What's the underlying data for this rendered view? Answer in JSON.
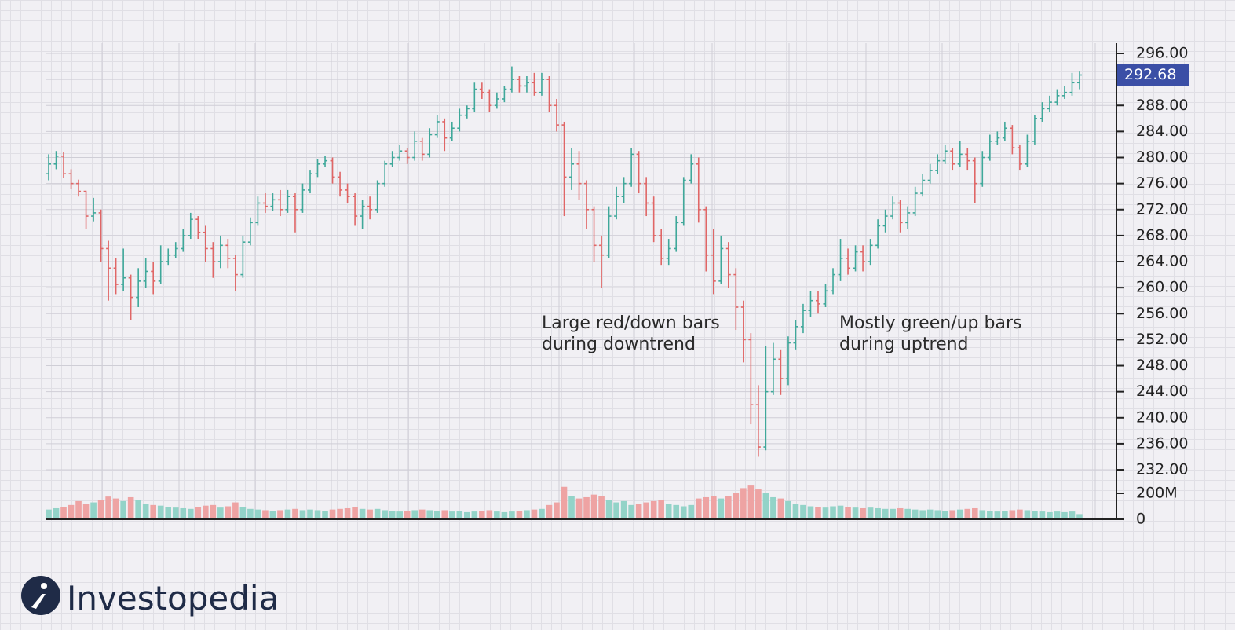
{
  "chart_data": {
    "type": "ohlc",
    "open": [
      277.5,
      279.0,
      280.2,
      277.5,
      276.0,
      274.8,
      271.0,
      271.5,
      266.0,
      263.0,
      260.5,
      261.5,
      258.5,
      261.0,
      262.5,
      261.0,
      264.0,
      265.0,
      266.0,
      268.0,
      270.5,
      268.5,
      266.0,
      264.0,
      266.5,
      264.5,
      262.0,
      267.0,
      270.0,
      273.0,
      272.5,
      273.5,
      272.0,
      274.0,
      272.0,
      275.0,
      277.5,
      279.0,
      279.5,
      277.0,
      275.0,
      274.0,
      271.0,
      272.5,
      272.0,
      276.0,
      279.0,
      280.0,
      281.0,
      280.0,
      282.5,
      280.5,
      283.5,
      285.5,
      283.0,
      284.5,
      286.5,
      287.5,
      290.5,
      290.0,
      288.0,
      289.0,
      290.5,
      292.0,
      291.0,
      291.5,
      290.0,
      292.0,
      288.0,
      285.0,
      277.0,
      279.0,
      276.0,
      272.0,
      266.5,
      265.0,
      271.0,
      274.0,
      276.0,
      280.5,
      276.0,
      273.0,
      268.0,
      264.5,
      266.0,
      270.0,
      276.5,
      279.0,
      272.0,
      265.0,
      261.0,
      266.0,
      262.0,
      257.0,
      252.0,
      242.0,
      235.5,
      244.0,
      249.0,
      246.0,
      251.5,
      254.0,
      256.5,
      258.0,
      257.5,
      259.5,
      262.0,
      264.5,
      263.0,
      265.5,
      264.0,
      266.5,
      269.5,
      271.0,
      273.0,
      270.0,
      271.5,
      274.5,
      276.5,
      278.0,
      279.5,
      281.0,
      279.0,
      280.5,
      279.5,
      276.0,
      280.0,
      282.5,
      283.0,
      284.5,
      281.5,
      279.0,
      282.5,
      286.0,
      287.5,
      288.5,
      289.5,
      290.0,
      291.5
    ],
    "high": [
      280.5,
      281.0,
      280.8,
      278.2,
      276.6,
      274.9,
      273.8,
      272.0,
      267.2,
      264.5,
      266.0,
      262.0,
      263.0,
      264.5,
      264.0,
      266.5,
      266.0,
      267.0,
      269.0,
      271.5,
      271.0,
      269.5,
      267.0,
      268.0,
      267.5,
      265.0,
      268.0,
      270.8,
      274.0,
      274.5,
      274.5,
      275.0,
      275.0,
      274.5,
      276.0,
      278.0,
      279.8,
      280.2,
      280.0,
      277.8,
      276.0,
      274.5,
      273.5,
      274.0,
      276.5,
      279.5,
      281.0,
      282.0,
      281.5,
      284.0,
      283.0,
      284.5,
      286.5,
      286.0,
      285.5,
      287.5,
      288.0,
      291.5,
      291.5,
      290.5,
      290.0,
      291.0,
      294.0,
      292.5,
      292.5,
      293.0,
      293.0,
      292.5,
      289.0,
      285.5,
      281.5,
      281.0,
      276.5,
      272.5,
      268.0,
      272.5,
      275.5,
      277.0,
      281.5,
      281.0,
      277.0,
      274.0,
      269.0,
      267.5,
      271.0,
      277.0,
      280.5,
      280.0,
      272.5,
      269.0,
      268.0,
      267.0,
      263.0,
      258.0,
      253.0,
      245.0,
      251.0,
      251.5,
      250.5,
      252.5,
      255.0,
      257.5,
      259.5,
      259.5,
      260.5,
      263.0,
      267.5,
      266.0,
      266.5,
      266.5,
      267.5,
      270.5,
      272.0,
      274.0,
      273.5,
      272.5,
      275.5,
      277.5,
      279.0,
      280.5,
      282.0,
      281.5,
      282.5,
      281.5,
      280.0,
      281.0,
      283.5,
      284.0,
      285.5,
      285.0,
      282.0,
      283.5,
      286.5,
      288.5,
      289.5,
      290.5,
      291.0,
      293.0,
      293.2
    ],
    "low": [
      276.5,
      278.2,
      276.8,
      275.2,
      274.0,
      269.0,
      270.2,
      264.0,
      258.0,
      259.0,
      259.5,
      255.0,
      257.0,
      260.0,
      259.0,
      260.5,
      263.5,
      264.5,
      265.5,
      267.5,
      267.5,
      264.0,
      261.5,
      263.0,
      263.0,
      259.5,
      261.5,
      266.5,
      269.5,
      271.5,
      271.8,
      271.0,
      271.5,
      268.5,
      271.5,
      274.5,
      277.0,
      278.5,
      276.0,
      274.0,
      273.0,
      269.5,
      269.0,
      270.5,
      271.5,
      275.5,
      278.5,
      279.5,
      279.0,
      279.5,
      279.5,
      280.0,
      283.0,
      281.0,
      282.5,
      284.0,
      286.0,
      287.0,
      289.0,
      287.0,
      287.5,
      288.5,
      290.0,
      290.0,
      290.0,
      289.5,
      289.5,
      287.0,
      284.0,
      271.0,
      275.0,
      273.5,
      269.0,
      264.0,
      260.0,
      264.5,
      270.5,
      273.0,
      275.5,
      274.5,
      271.0,
      267.0,
      263.5,
      263.5,
      265.5,
      269.5,
      276.0,
      270.0,
      262.5,
      259.0,
      260.5,
      260.0,
      253.5,
      248.5,
      239.0,
      234.0,
      235.0,
      243.5,
      243.5,
      245.0,
      250.5,
      253.0,
      255.5,
      256.0,
      257.0,
      259.0,
      261.0,
      262.0,
      262.5,
      262.5,
      263.5,
      266.0,
      268.5,
      270.5,
      268.5,
      269.0,
      271.0,
      274.0,
      276.0,
      277.5,
      279.0,
      278.0,
      278.5,
      278.0,
      273.0,
      275.5,
      279.5,
      282.0,
      282.5,
      280.5,
      278.0,
      278.5,
      282.0,
      285.5,
      287.0,
      288.0,
      289.0,
      289.5,
      290.5
    ],
    "close": [
      279.0,
      280.2,
      277.5,
      276.0,
      274.8,
      271.0,
      271.5,
      266.0,
      263.0,
      260.5,
      261.5,
      258.5,
      261.0,
      262.5,
      261.0,
      264.0,
      265.0,
      266.0,
      268.0,
      270.5,
      268.5,
      266.0,
      264.0,
      266.5,
      264.5,
      262.0,
      267.0,
      270.0,
      273.0,
      272.5,
      273.5,
      272.0,
      274.0,
      272.0,
      275.0,
      277.5,
      279.0,
      279.5,
      277.0,
      275.0,
      274.0,
      271.0,
      272.5,
      272.0,
      276.0,
      279.0,
      280.0,
      281.0,
      280.0,
      282.5,
      280.5,
      283.5,
      285.5,
      283.0,
      284.5,
      286.5,
      287.5,
      290.5,
      290.0,
      288.0,
      289.0,
      290.5,
      292.0,
      291.0,
      291.5,
      290.0,
      292.0,
      288.0,
      285.0,
      277.0,
      279.0,
      276.0,
      272.0,
      266.5,
      265.0,
      271.0,
      274.0,
      276.0,
      280.5,
      276.0,
      273.0,
      268.0,
      264.5,
      266.0,
      270.0,
      276.5,
      279.0,
      272.0,
      265.0,
      261.0,
      266.0,
      262.0,
      257.0,
      252.0,
      242.0,
      235.5,
      244.0,
      249.0,
      246.0,
      251.5,
      254.0,
      256.5,
      258.0,
      257.5,
      259.5,
      262.0,
      264.5,
      263.0,
      265.5,
      264.0,
      266.5,
      269.5,
      271.0,
      273.0,
      270.0,
      271.5,
      274.5,
      276.5,
      278.0,
      279.5,
      281.0,
      279.0,
      280.5,
      279.5,
      276.0,
      280.0,
      282.5,
      283.0,
      284.5,
      281.5,
      279.0,
      282.5,
      286.0,
      287.5,
      288.5,
      289.5,
      290.0,
      291.5,
      292.68
    ],
    "volume": [
      75,
      85,
      95,
      110,
      140,
      120,
      130,
      150,
      175,
      160,
      140,
      170,
      150,
      120,
      110,
      105,
      95,
      90,
      85,
      80,
      95,
      105,
      110,
      90,
      100,
      130,
      95,
      80,
      75,
      70,
      65,
      70,
      75,
      80,
      70,
      75,
      70,
      65,
      75,
      80,
      85,
      95,
      80,
      75,
      80,
      70,
      65,
      60,
      65,
      70,
      75,
      70,
      65,
      70,
      60,
      65,
      55,
      60,
      65,
      70,
      60,
      55,
      60,
      65,
      70,
      75,
      80,
      110,
      130,
      250,
      180,
      160,
      170,
      190,
      180,
      150,
      130,
      140,
      110,
      120,
      130,
      140,
      150,
      120,
      110,
      100,
      110,
      160,
      170,
      180,
      160,
      180,
      200,
      240,
      260,
      230,
      200,
      170,
      160,
      140,
      120,
      110,
      100,
      95,
      90,
      100,
      105,
      95,
      90,
      85,
      90,
      85,
      80,
      80,
      85,
      80,
      75,
      70,
      75,
      70,
      65,
      70,
      75,
      80,
      85,
      70,
      65,
      60,
      65,
      70,
      75,
      70,
      65,
      60,
      55,
      60,
      55,
      60,
      40
    ],
    "up_color": "#3fa89a",
    "down_color": "#e06666",
    "volume_up_color": "#93d3c8",
    "volume_down_color": "#eea3a3",
    "ylim": [
      230,
      298
    ],
    "yticks": [
      {
        "value": 232,
        "label": "232.00"
      },
      {
        "value": 236,
        "label": "236.00"
      },
      {
        "value": 240,
        "label": "240.00"
      },
      {
        "value": 244,
        "label": "244.00"
      },
      {
        "value": 248,
        "label": "248.00"
      },
      {
        "value": 252,
        "label": "252.00"
      },
      {
        "value": 256,
        "label": "256.00"
      },
      {
        "value": 260,
        "label": "260.00"
      },
      {
        "value": 264,
        "label": "264.00"
      },
      {
        "value": 268,
        "label": "268.00"
      },
      {
        "value": 272,
        "label": "272.00"
      },
      {
        "value": 276,
        "label": "276.00"
      },
      {
        "value": 280,
        "label": "280.00"
      },
      {
        "value": 284,
        "label": "284.00"
      },
      {
        "value": 288,
        "label": "288.00"
      },
      {
        "value": 292,
        "label": "292.00"
      },
      {
        "value": 296,
        "label": "296.00"
      }
    ],
    "volume_ylim": [
      0,
      400
    ],
    "volume_yticks": [
      0,
      {
        "value": 200,
        "label": "200M"
      }
    ],
    "last_price": 292.68,
    "grid": true,
    "annotations": [
      [
        "Large red/down bars",
        "during downtrend"
      ],
      [
        "Mostly green/up bars",
        "during uptrend"
      ]
    ]
  },
  "logo": {
    "text": "Investopedia"
  }
}
